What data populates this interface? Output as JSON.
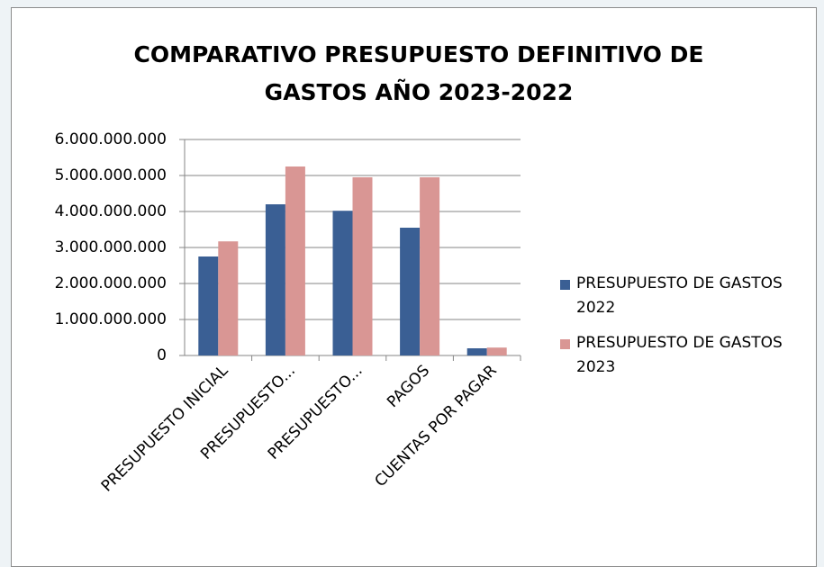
{
  "chart_data": {
    "type": "bar",
    "title": [
      "COMPARATIVO PRESUPUESTO DEFINITIVO DE",
      "GASTOS  AÑO 2023-2022"
    ],
    "categories": [
      "PRESUPUESTO INICIAL",
      "PRESUPUESTO...",
      "PRESUPUESTO...",
      "PAGOS",
      "CUENTAS POR PAGAR"
    ],
    "series": [
      {
        "name": "PRESUPUESTO DE GASTOS 2022",
        "color": "#3a5f94",
        "values": [
          2750000000,
          4200000000,
          4020000000,
          3550000000,
          200000000
        ]
      },
      {
        "name": "PRESUPUESTO DE GASTOS 2023",
        "color": "#d99694",
        "values": [
          3170000000,
          5250000000,
          4950000000,
          4950000000,
          220000000
        ]
      }
    ],
    "ylim": [
      0,
      6000000000
    ],
    "yticks": [
      0,
      {
        "value": 1000000000,
        "label": "1.000.000.000"
      },
      {
        "value": 2000000000,
        "label": "2.000.000.000"
      },
      {
        "value": 3000000000,
        "label": "3.000.000.000"
      },
      {
        "value": 4000000000,
        "label": "4.000.000.000"
      },
      {
        "value": 5000000000,
        "label": "5.000.000.000"
      },
      {
        "value": 6000000000,
        "label": "6.000.000.000"
      }
    ],
    "grid": true,
    "legend": "right"
  }
}
